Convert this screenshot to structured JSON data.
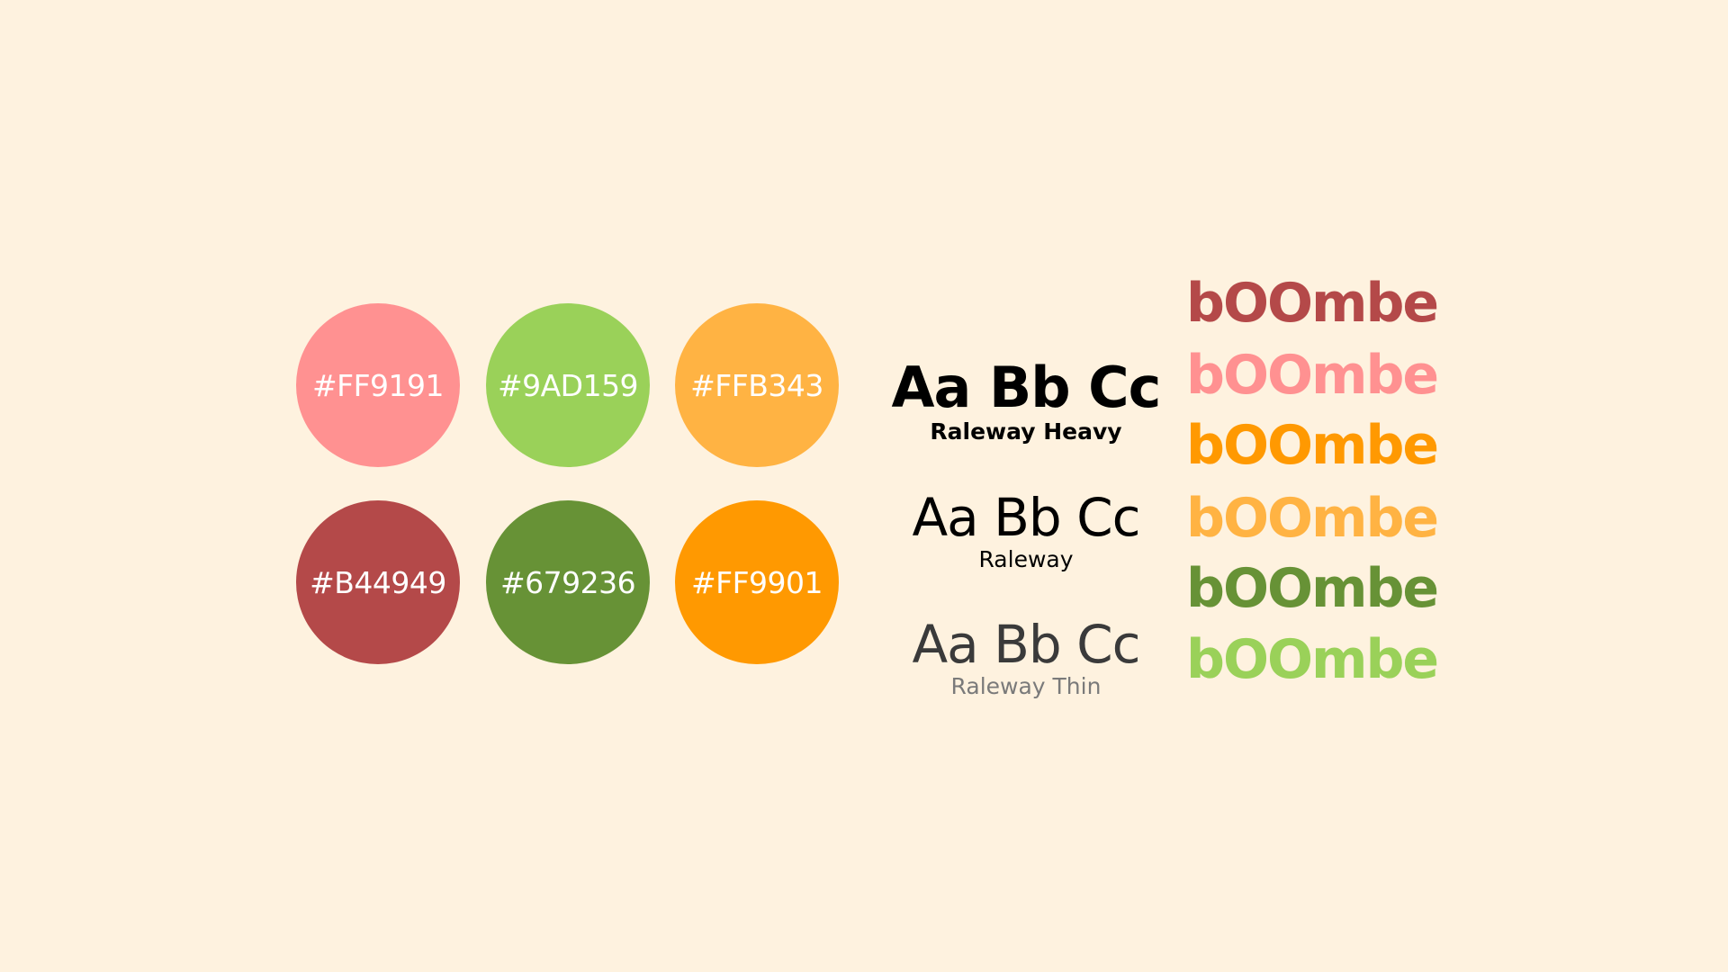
{
  "palette": {
    "swatches": [
      {
        "hex": "#FF9191",
        "label": "#FF9191"
      },
      {
        "hex": "#9AD159",
        "label": "#9AD159"
      },
      {
        "hex": "#FFB343",
        "label": "#FFB343"
      },
      {
        "hex": "#B44949",
        "label": "#B44949"
      },
      {
        "hex": "#679236",
        "label": "#679236"
      },
      {
        "hex": "#FF9901",
        "label": "#FF9901"
      }
    ]
  },
  "typography": {
    "specimens": [
      {
        "sample": "Aa Bb Cc",
        "name": "Raleway Heavy"
      },
      {
        "sample": "Aa Bb Cc",
        "name": "Raleway"
      },
      {
        "sample": "Aa Bb Cc",
        "name": "Raleway Thin"
      }
    ]
  },
  "wordmarks": [
    {
      "text": "bOOmbe",
      "color": "#B44949"
    },
    {
      "text": "bOOmbe",
      "color": "#FF9191"
    },
    {
      "text": "bOOmbe",
      "color": "#FF9901"
    },
    {
      "text": "bOOmbe",
      "color": "#FFB343"
    },
    {
      "text": "bOOmbe",
      "color": "#679236"
    },
    {
      "text": "bOOmbe",
      "color": "#9AD159"
    }
  ]
}
